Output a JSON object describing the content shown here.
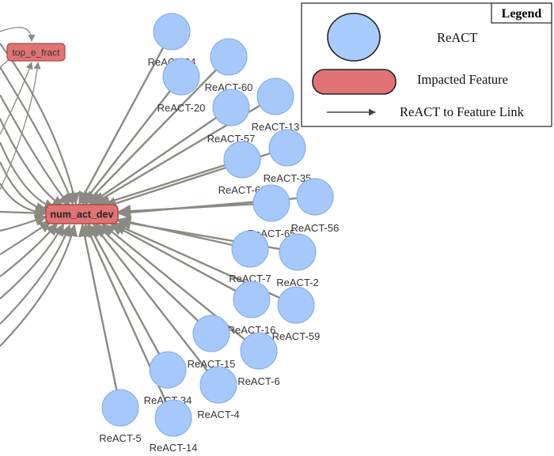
{
  "colors": {
    "react_fill": "#a6c8fb",
    "react_stroke": "#7ea8e8",
    "feature_fill": "#e07474",
    "feature_stroke": "#b34444",
    "edge": "#8a8a82",
    "legend_react_fill": "#a8cbfd",
    "legend_stroke": "#222222"
  },
  "legend": {
    "title": "Legend",
    "react_label": "ReACT",
    "feature_label": "Impacted Feature",
    "link_label": "ReACT to Feature Link"
  },
  "features": {
    "main": "num_act_dev",
    "secondary": "top_e_fract"
  },
  "react_nodes": [
    {
      "id": "ReACT-24",
      "label": "ReACT-24"
    },
    {
      "id": "ReACT-60",
      "label": "ReACT-60"
    },
    {
      "id": "ReACT-20",
      "label": "ReACT-20"
    },
    {
      "id": "ReACT-13",
      "label": "ReACT-13"
    },
    {
      "id": "ReACT-57",
      "label": "ReACT-57"
    },
    {
      "id": "ReACT-35",
      "label": "ReACT-35"
    },
    {
      "id": "ReACT-62",
      "label": "ReACT-62"
    },
    {
      "id": "ReACT-56",
      "label": "ReACT-56"
    },
    {
      "id": "ReACT-65",
      "label": "ReACT-65"
    },
    {
      "id": "ReACT-2",
      "label": "ReACT-2"
    },
    {
      "id": "ReACT-7",
      "label": "ReACT-7"
    },
    {
      "id": "ReACT-59",
      "label": "ReACT-59"
    },
    {
      "id": "ReACT-16",
      "label": "ReACT-16"
    },
    {
      "id": "ReACT-6",
      "label": "ReACT-6"
    },
    {
      "id": "ReACT-15",
      "label": "ReACT-15"
    },
    {
      "id": "ReACT-4",
      "label": "ReACT-4"
    },
    {
      "id": "ReACT-34",
      "label": "ReACT-34"
    },
    {
      "id": "ReACT-5",
      "label": "ReACT-5"
    },
    {
      "id": "ReACT-14",
      "label": "ReACT-14"
    }
  ]
}
